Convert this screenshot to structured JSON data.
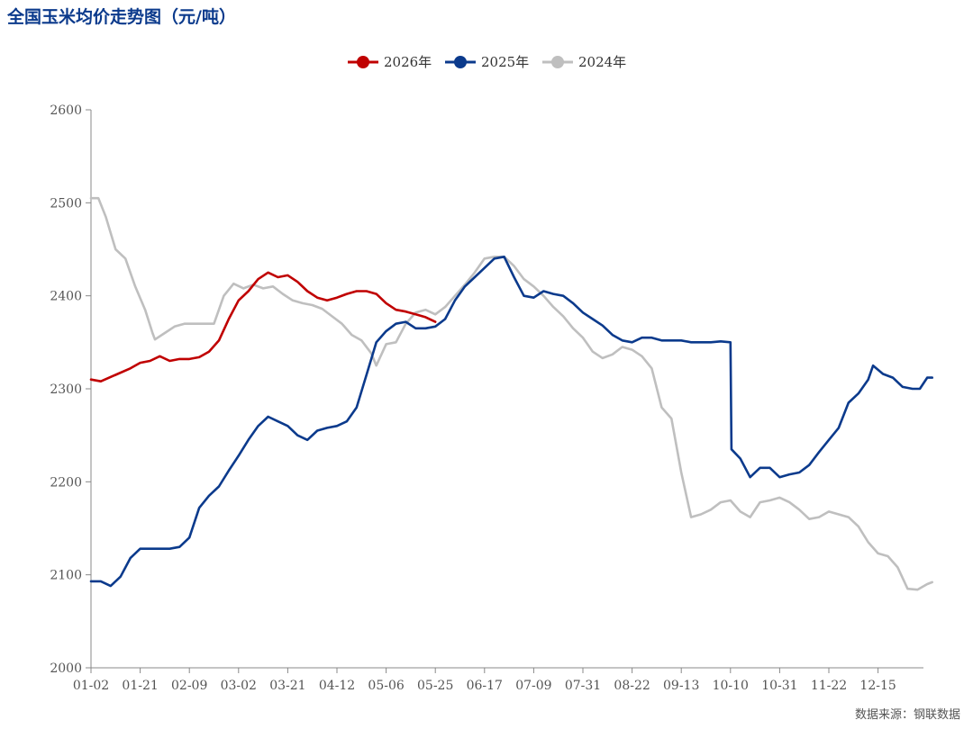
{
  "title": "全国玉米均价走势图（元/吨）",
  "source": "数据来源：钢联数据",
  "chart_data": {
    "type": "line",
    "x": [
      "01-02",
      "01-21",
      "02-09",
      "03-02",
      "03-21",
      "04-12",
      "05-06",
      "05-25",
      "06-17",
      "07-09",
      "07-31",
      "08-22",
      "09-13",
      "10-10",
      "10-31",
      "11-22",
      "12-15"
    ],
    "ylim": [
      2000,
      2600
    ],
    "yticks": [
      2000,
      2100,
      2200,
      2300,
      2400,
      2500,
      2600
    ],
    "legend_position": "top-center",
    "grid": false,
    "series": [
      {
        "name": "2026年",
        "color": "#c00000",
        "points": [
          [
            0,
            2310
          ],
          [
            0.2,
            2308
          ],
          [
            0.5,
            2315
          ],
          [
            0.8,
            2322
          ],
          [
            1.0,
            2328
          ],
          [
            1.2,
            2330
          ],
          [
            1.4,
            2335
          ],
          [
            1.6,
            2330
          ],
          [
            1.8,
            2332
          ],
          [
            2.0,
            2332
          ],
          [
            2.2,
            2334
          ],
          [
            2.4,
            2340
          ],
          [
            2.6,
            2352
          ],
          [
            2.8,
            2375
          ],
          [
            3.0,
            2395
          ],
          [
            3.2,
            2405
          ],
          [
            3.4,
            2418
          ],
          [
            3.6,
            2425
          ],
          [
            3.8,
            2420
          ],
          [
            4.0,
            2422
          ],
          [
            4.2,
            2415
          ],
          [
            4.4,
            2405
          ],
          [
            4.6,
            2398
          ],
          [
            4.8,
            2395
          ],
          [
            5.0,
            2398
          ],
          [
            5.2,
            2402
          ],
          [
            5.4,
            2405
          ],
          [
            5.6,
            2405
          ],
          [
            5.8,
            2402
          ],
          [
            6.0,
            2392
          ],
          [
            6.2,
            2385
          ],
          [
            6.4,
            2383
          ],
          [
            6.6,
            2380
          ],
          [
            6.8,
            2377
          ],
          [
            7.0,
            2372
          ]
        ]
      },
      {
        "name": "2025年",
        "color": "#0b3a8c",
        "points": [
          [
            0,
            2093
          ],
          [
            0.2,
            2093
          ],
          [
            0.4,
            2088
          ],
          [
            0.6,
            2098
          ],
          [
            0.8,
            2118
          ],
          [
            1.0,
            2128
          ],
          [
            1.2,
            2128
          ],
          [
            1.6,
            2128
          ],
          [
            1.8,
            2130
          ],
          [
            2.0,
            2140
          ],
          [
            2.2,
            2172
          ],
          [
            2.4,
            2185
          ],
          [
            2.6,
            2195
          ],
          [
            2.8,
            2212
          ],
          [
            3.0,
            2228
          ],
          [
            3.2,
            2245
          ],
          [
            3.4,
            2260
          ],
          [
            3.6,
            2270
          ],
          [
            3.8,
            2265
          ],
          [
            4.0,
            2260
          ],
          [
            4.2,
            2250
          ],
          [
            4.4,
            2245
          ],
          [
            4.6,
            2255
          ],
          [
            4.8,
            2258
          ],
          [
            5.0,
            2260
          ],
          [
            5.2,
            2265
          ],
          [
            5.4,
            2280
          ],
          [
            5.6,
            2315
          ],
          [
            5.8,
            2350
          ],
          [
            6.0,
            2362
          ],
          [
            6.2,
            2370
          ],
          [
            6.4,
            2372
          ],
          [
            6.6,
            2365
          ],
          [
            6.8,
            2365
          ],
          [
            7.0,
            2367
          ],
          [
            7.2,
            2375
          ],
          [
            7.4,
            2395
          ],
          [
            7.6,
            2410
          ],
          [
            7.8,
            2420
          ],
          [
            8.0,
            2430
          ],
          [
            8.2,
            2440
          ],
          [
            8.4,
            2442
          ],
          [
            8.6,
            2420
          ],
          [
            8.8,
            2400
          ],
          [
            9.0,
            2398
          ],
          [
            9.2,
            2405
          ],
          [
            9.4,
            2402
          ],
          [
            9.6,
            2400
          ],
          [
            9.8,
            2392
          ],
          [
            10.0,
            2382
          ],
          [
            10.2,
            2375
          ],
          [
            10.4,
            2368
          ],
          [
            10.6,
            2358
          ],
          [
            10.8,
            2352
          ],
          [
            11.0,
            2350
          ],
          [
            11.2,
            2355
          ],
          [
            11.4,
            2355
          ],
          [
            11.6,
            2352
          ],
          [
            11.8,
            2352
          ],
          [
            12.0,
            2352
          ],
          [
            12.2,
            2350
          ],
          [
            12.4,
            2350
          ],
          [
            12.6,
            2350
          ],
          [
            12.8,
            2351
          ],
          [
            13.0,
            2350
          ],
          [
            13.02,
            2235
          ],
          [
            13.2,
            2225
          ],
          [
            13.4,
            2205
          ],
          [
            13.6,
            2215
          ],
          [
            13.8,
            2215
          ],
          [
            14.0,
            2205
          ],
          [
            14.2,
            2208
          ],
          [
            14.4,
            2210
          ],
          [
            14.6,
            2218
          ],
          [
            14.8,
            2232
          ],
          [
            15.0,
            2245
          ],
          [
            15.2,
            2258
          ],
          [
            15.4,
            2285
          ],
          [
            15.6,
            2295
          ],
          [
            15.8,
            2310
          ],
          [
            15.9,
            2325
          ],
          [
            16.1,
            2316
          ],
          [
            16.3,
            2312
          ],
          [
            16.5,
            2302
          ],
          [
            16.7,
            2300
          ],
          [
            16.85,
            2300
          ],
          [
            17.0,
            2312
          ],
          [
            17.1,
            2312
          ]
        ]
      },
      {
        "name": "2024年",
        "color": "#bfbfbf",
        "points": [
          [
            0,
            2505
          ],
          [
            0.15,
            2505
          ],
          [
            0.3,
            2485
          ],
          [
            0.5,
            2450
          ],
          [
            0.7,
            2440
          ],
          [
            0.9,
            2410
          ],
          [
            1.1,
            2385
          ],
          [
            1.25,
            2360
          ],
          [
            1.3,
            2353
          ],
          [
            1.5,
            2360
          ],
          [
            1.7,
            2367
          ],
          [
            1.9,
            2370
          ],
          [
            2.1,
            2370
          ],
          [
            2.3,
            2370
          ],
          [
            2.5,
            2370
          ],
          [
            2.7,
            2400
          ],
          [
            2.9,
            2413
          ],
          [
            3.1,
            2408
          ],
          [
            3.3,
            2412
          ],
          [
            3.5,
            2408
          ],
          [
            3.7,
            2410
          ],
          [
            3.9,
            2402
          ],
          [
            4.1,
            2395
          ],
          [
            4.3,
            2392
          ],
          [
            4.5,
            2390
          ],
          [
            4.7,
            2386
          ],
          [
            4.9,
            2378
          ],
          [
            5.1,
            2370
          ],
          [
            5.3,
            2358
          ],
          [
            5.5,
            2352
          ],
          [
            5.7,
            2338
          ],
          [
            5.8,
            2325
          ],
          [
            6.0,
            2348
          ],
          [
            6.2,
            2350
          ],
          [
            6.4,
            2370
          ],
          [
            6.6,
            2382
          ],
          [
            6.8,
            2385
          ],
          [
            7.0,
            2380
          ],
          [
            7.2,
            2388
          ],
          [
            7.4,
            2400
          ],
          [
            7.6,
            2412
          ],
          [
            7.8,
            2425
          ],
          [
            8.0,
            2440
          ],
          [
            8.2,
            2442
          ],
          [
            8.4,
            2442
          ],
          [
            8.6,
            2432
          ],
          [
            8.8,
            2418
          ],
          [
            9.0,
            2410
          ],
          [
            9.2,
            2400
          ],
          [
            9.4,
            2388
          ],
          [
            9.6,
            2378
          ],
          [
            9.8,
            2365
          ],
          [
            10.0,
            2355
          ],
          [
            10.2,
            2340
          ],
          [
            10.4,
            2333
          ],
          [
            10.6,
            2337
          ],
          [
            10.8,
            2345
          ],
          [
            11.0,
            2342
          ],
          [
            11.2,
            2335
          ],
          [
            11.4,
            2322
          ],
          [
            11.6,
            2280
          ],
          [
            11.8,
            2268
          ],
          [
            12.0,
            2210
          ],
          [
            12.2,
            2162
          ],
          [
            12.4,
            2165
          ],
          [
            12.6,
            2170
          ],
          [
            12.8,
            2178
          ],
          [
            13.0,
            2180
          ],
          [
            13.2,
            2168
          ],
          [
            13.4,
            2162
          ],
          [
            13.6,
            2178
          ],
          [
            13.8,
            2180
          ],
          [
            14.0,
            2183
          ],
          [
            14.2,
            2178
          ],
          [
            14.4,
            2170
          ],
          [
            14.6,
            2160
          ],
          [
            14.8,
            2162
          ],
          [
            15.0,
            2168
          ],
          [
            15.2,
            2165
          ],
          [
            15.4,
            2162
          ],
          [
            15.6,
            2152
          ],
          [
            15.8,
            2135
          ],
          [
            16.0,
            2123
          ],
          [
            16.2,
            2120
          ],
          [
            16.4,
            2108
          ],
          [
            16.6,
            2085
          ],
          [
            16.8,
            2084
          ],
          [
            17.0,
            2090
          ],
          [
            17.1,
            2092
          ]
        ]
      }
    ]
  }
}
